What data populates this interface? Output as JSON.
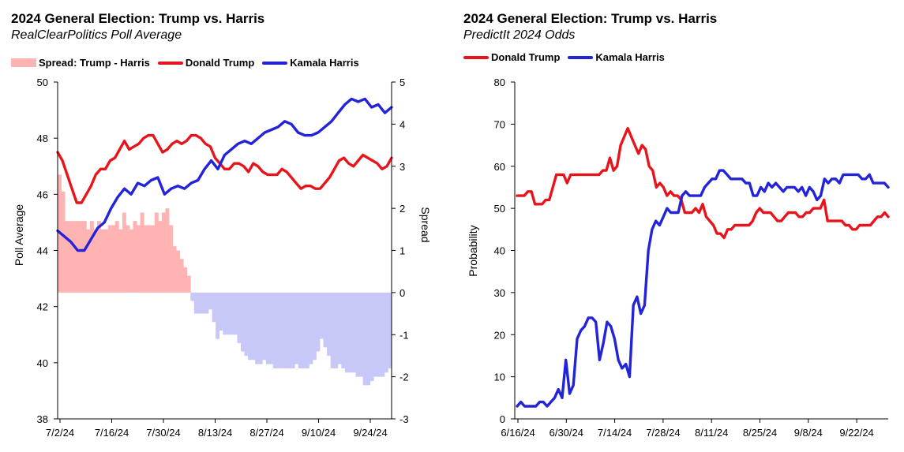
{
  "colors": {
    "trump": "#e8141b",
    "harris": "#2323d8",
    "spread_pos": "#ffb3b3",
    "spread_neg": "#c8c8f8"
  },
  "chart_data": [
    {
      "type": "line",
      "title": "2024 General Election: Trump vs. Harris",
      "subtitle": "RealClearPolitics Poll Average",
      "ylabel": "Poll Average",
      "y2label": "Spread",
      "ylim": [
        38,
        50
      ],
      "y2lim": [
        -3,
        5
      ],
      "yticks": [
        "50",
        "48",
        "46",
        "44",
        "42",
        "40",
        "38"
      ],
      "y2ticks": [
        "5",
        "4",
        "3",
        "2",
        "1",
        "0",
        "-1",
        "-2",
        "-3"
      ],
      "xticks": [
        "7/2/24",
        "7/16/24",
        "7/30/24",
        "8/13/24",
        "8/27/24",
        "9/10/24",
        "9/24/24"
      ],
      "grid": false,
      "legend": {
        "position": "top",
        "entries": [
          "Spread: Trump - Harris",
          "Donald Trump",
          "Kamala Harris"
        ]
      },
      "series": [
        {
          "name": "Donald Trump",
          "values": [
            47.5,
            47.2,
            46.7,
            46.2,
            45.7,
            45.7,
            46.0,
            46.3,
            46.7,
            46.9,
            46.9,
            47.2,
            47.3,
            47.6,
            47.9,
            47.6,
            47.7,
            47.8,
            48.0,
            48.1,
            48.1,
            47.8,
            47.5,
            47.6,
            47.8,
            47.9,
            47.8,
            47.9,
            48.1,
            48.1,
            48.0,
            47.8,
            47.7,
            47.3,
            47.1,
            46.9,
            46.9,
            47.1,
            47.1,
            47.0,
            46.8,
            47.1,
            47.0,
            46.8,
            46.7,
            46.7,
            46.7,
            46.9,
            46.8,
            46.6,
            46.4,
            46.2,
            46.3,
            46.3,
            46.2,
            46.2,
            46.4,
            46.6,
            46.9,
            47.2,
            47.3,
            47.1,
            47.0,
            47.2,
            47.4,
            47.3,
            47.2,
            47.1,
            46.9,
            47.0,
            47.3
          ]
        },
        {
          "name": "Kamala Harris",
          "values": [
            44.7,
            44.5,
            44.3,
            44.0,
            44.0,
            44.4,
            44.8,
            45.0,
            45.5,
            45.9,
            46.2,
            46.0,
            46.4,
            46.3,
            46.5,
            46.6,
            46.0,
            46.2,
            46.3,
            46.2,
            46.4,
            46.5,
            46.9,
            47.2,
            46.9,
            47.4,
            47.6,
            47.8,
            47.9,
            47.8,
            48.0,
            48.2,
            48.3,
            48.4,
            48.6,
            48.5,
            48.2,
            48.1,
            48.1,
            48.2,
            48.4,
            48.6,
            48.9,
            49.2,
            49.4,
            49.3,
            49.4,
            49.1,
            49.2,
            48.9,
            49.1
          ]
        },
        {
          "name": "Spread: Trump - Harris",
          "values": [
            2.8,
            2.4,
            1.7,
            1.7,
            1.7,
            1.7,
            1.7,
            1.7,
            1.5,
            1.7,
            1.5,
            1.7,
            1.5,
            1.5,
            1.6,
            1.6,
            1.7,
            1.5,
            1.9,
            1.6,
            1.5,
            1.7,
            1.6,
            1.9,
            1.6,
            1.6,
            1.6,
            1.9,
            1.7,
            1.9,
            2.0,
            1.6,
            1.1,
            1.0,
            0.8,
            0.6,
            0.4,
            -0.2,
            -0.5,
            -0.5,
            -0.5,
            -0.5,
            -0.4,
            -0.7,
            -1.1,
            -0.9,
            -1.0,
            -1.0,
            -1.0,
            -1.0,
            -1.2,
            -1.4,
            -1.5,
            -1.6,
            -1.6,
            -1.7,
            -1.7,
            -1.6,
            -1.7,
            -1.7,
            -1.8,
            -1.8,
            -1.8,
            -1.8,
            -1.8,
            -1.8,
            -1.7,
            -1.8,
            -1.8,
            -1.8,
            -1.7,
            -1.6,
            -1.4,
            -1.1,
            -1.3,
            -1.5,
            -1.8,
            -1.8,
            -1.7,
            -1.8,
            -1.9,
            -1.9,
            -1.9,
            -2.0,
            -2.0,
            -2.2,
            -2.2,
            -2.1,
            -2.0,
            -2.0,
            -2.0,
            -1.9,
            -1.8
          ]
        }
      ]
    },
    {
      "type": "line",
      "title": "2024 General Election: Trump vs. Harris",
      "subtitle": "PredictIt 2024 Odds",
      "ylabel": "Probability",
      "ylim": [
        0,
        80
      ],
      "yticks": [
        "80",
        "70",
        "60",
        "50",
        "40",
        "30",
        "20",
        "10",
        "0"
      ],
      "xticks": [
        "6/16/24",
        "6/30/24",
        "7/14/24",
        "7/28/24",
        "8/11/24",
        "8/25/24",
        "9/8/24",
        "9/22/24"
      ],
      "grid": false,
      "legend": {
        "position": "top",
        "entries": [
          "Donald Trump",
          "Kamala Harris"
        ]
      },
      "series": [
        {
          "name": "Donald Trump",
          "values": [
            53,
            53,
            53,
            54,
            54,
            51,
            51,
            51,
            52,
            52,
            55,
            58,
            58,
            58,
            56,
            58,
            58,
            58,
            58,
            58,
            58,
            58,
            58,
            58,
            59,
            59,
            62,
            59,
            60,
            65,
            67,
            69,
            67,
            65,
            63,
            65,
            64,
            60,
            59,
            55,
            56,
            55,
            53,
            54,
            53,
            53,
            52,
            49,
            49,
            49,
            50,
            49,
            51,
            48,
            47,
            46,
            44,
            44,
            43,
            45,
            45,
            46,
            46,
            46,
            46,
            46,
            47,
            49,
            50,
            49,
            49,
            49,
            48,
            47,
            47,
            48,
            49,
            49,
            49,
            48,
            48,
            49,
            49,
            50,
            50,
            50,
            52,
            47,
            47,
            47,
            47,
            47,
            46,
            46,
            45,
            45,
            46,
            46,
            46,
            46,
            47,
            48,
            48,
            49,
            48
          ]
        },
        {
          "name": "Kamala Harris",
          "values": [
            3,
            4,
            3,
            3,
            3,
            3,
            4,
            4,
            3,
            4,
            5,
            7,
            5,
            14,
            6,
            8,
            19,
            21,
            22,
            24,
            24,
            23,
            14,
            18,
            23,
            22,
            19,
            14,
            12,
            13,
            10,
            27,
            29,
            25,
            27,
            40,
            45,
            47,
            46,
            48,
            50,
            49,
            49,
            49,
            53,
            54,
            53,
            53,
            53,
            53,
            55,
            56,
            57,
            57,
            59,
            59,
            58,
            57,
            57,
            57,
            57,
            56,
            56,
            53,
            53,
            55,
            54,
            56,
            55,
            56,
            55,
            54,
            55,
            55,
            55,
            54,
            55,
            53,
            55,
            54,
            52,
            53,
            57,
            56,
            57,
            57,
            56,
            58,
            58,
            58,
            58,
            58,
            57,
            57,
            58,
            56,
            56,
            56,
            56,
            55
          ]
        }
      ]
    }
  ]
}
